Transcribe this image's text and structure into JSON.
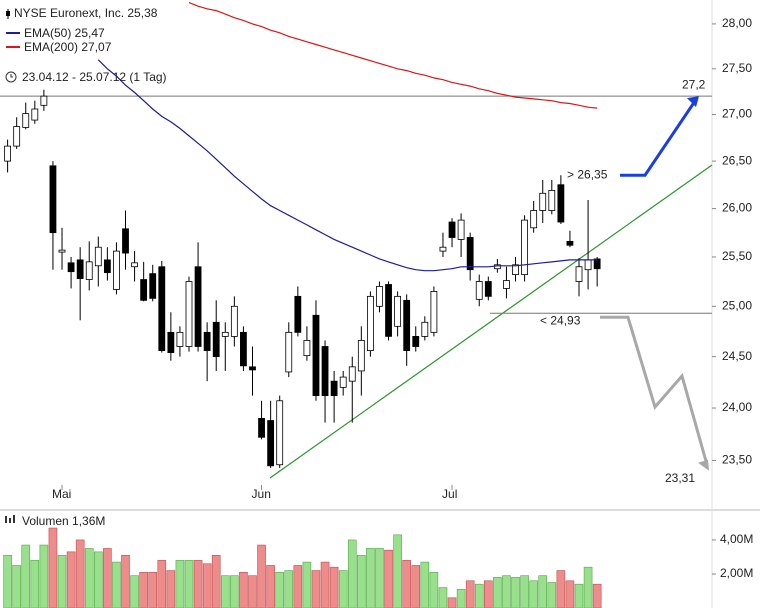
{
  "chart_data": {
    "type": "candlestick",
    "title": "NYSE Euronext, Inc. 25,38",
    "subtitle": "23.04.12 - 25.07.12 (1 Tag)",
    "categories": [
      null,
      null,
      null,
      null,
      null,
      null,
      "Mai",
      null,
      null,
      null,
      null,
      null,
      null,
      null,
      null,
      null,
      null,
      null,
      null,
      null,
      null,
      null,
      null,
      null,
      null,
      null,
      null,
      null,
      "Jun",
      null,
      null,
      null,
      null,
      null,
      null,
      null,
      null,
      null,
      null,
      null,
      null,
      null,
      null,
      null,
      null,
      null,
      null,
      null,
      null,
      "Jul",
      null,
      null,
      null,
      null,
      null,
      null,
      null,
      null,
      null,
      null,
      null,
      null,
      null,
      null,
      null,
      null
    ],
    "open": [
      26.5,
      26.66,
      26.86,
      26.94,
      27.1,
      26.45,
      25.55,
      25.44,
      25.47,
      25.27,
      25.41,
      25.47,
      25.17,
      25.79,
      25.4,
      25.27,
      25.33,
      25.4,
      24.74,
      24.6,
      24.6,
      25.4,
      24.74,
      24.84,
      24.7,
      24.7,
      24.74,
      24.4,
      23.9,
      23.88,
      23.46,
      24.35,
      25.1,
      24.51,
      24.91,
      24.6,
      24.26,
      24.2,
      24.26,
      24.36,
      24.56,
      25.0,
      25.22,
      24.8,
      25.06,
      24.7,
      24.7,
      24.74,
      25.56,
      25.86,
      25.68,
      25.7,
      25.07,
      25.25,
      25.38,
      25.18,
      25.32,
      25.32,
      25.8,
      25.98,
      25.98,
      26.25,
      25.66,
      25.25,
      25.37,
      25.48
    ],
    "high": [
      26.73,
      26.97,
      27.13,
      27.15,
      27.27,
      26.5,
      25.8,
      25.5,
      25.6,
      25.66,
      25.71,
      25.6,
      25.65,
      25.98,
      25.56,
      25.45,
      25.42,
      25.46,
      24.94,
      24.8,
      25.3,
      25.65,
      24.84,
      25.06,
      24.84,
      25.1,
      24.8,
      24.6,
      24.07,
      24.07,
      24.12,
      24.84,
      25.2,
      24.8,
      25.06,
      24.66,
      24.36,
      24.36,
      24.5,
      24.8,
      25.15,
      25.25,
      25.25,
      25.15,
      25.12,
      24.8,
      24.9,
      25.2,
      25.75,
      25.9,
      25.95,
      25.75,
      25.32,
      25.3,
      25.48,
      25.4,
      25.5,
      25.93,
      26.08,
      26.3,
      26.3,
      26.35,
      25.77,
      25.49,
      26.09,
      25.5
    ],
    "low": [
      26.38,
      26.63,
      26.84,
      26.9,
      27.04,
      25.37,
      25.37,
      25.18,
      24.86,
      25.16,
      25.2,
      25.26,
      25.12,
      25.37,
      25.25,
      25.05,
      25.05,
      24.54,
      24.46,
      24.5,
      24.55,
      24.55,
      24.26,
      24.36,
      24.36,
      24.6,
      24.36,
      24.12,
      23.7,
      23.43,
      23.43,
      24.3,
      24.7,
      24.46,
      24.07,
      23.86,
      23.86,
      24.12,
      23.86,
      24.12,
      24.5,
      24.94,
      24.66,
      24.7,
      24.41,
      24.55,
      24.66,
      24.7,
      25.5,
      25.6,
      25.5,
      25.26,
      25.0,
      25.06,
      25.34,
      25.08,
      25.25,
      25.25,
      25.75,
      25.85,
      25.94,
      25.84,
      25.6,
      25.1,
      25.17,
      25.2
    ],
    "close": [
      26.66,
      26.87,
      27.01,
      27.06,
      27.2,
      25.75,
      25.57,
      25.35,
      25.28,
      25.45,
      25.6,
      25.34,
      25.56,
      25.54,
      25.44,
      25.06,
      25.08,
      24.56,
      24.54,
      24.74,
      25.25,
      24.6,
      24.56,
      24.5,
      24.74,
      25.0,
      24.41,
      24.37,
      23.72,
      23.45,
      24.07,
      24.74,
      24.74,
      24.66,
      24.12,
      24.12,
      24.12,
      24.3,
      24.4,
      24.66,
      25.1,
      25.2,
      24.7,
      25.1,
      24.56,
      24.6,
      24.84,
      25.15,
      25.6,
      25.7,
      25.88,
      25.37,
      25.25,
      25.1,
      25.42,
      25.26,
      25.42,
      25.88,
      25.98,
      26.16,
      26.19,
      25.86,
      25.62,
      25.4,
      25.47,
      25.38
    ],
    "up_color": "#ffffff",
    "down_color": "#000000",
    "series": [
      {
        "name": "EMA(50) 25,47",
        "color": "#1c1c9c",
        "values": [
          null,
          null,
          null,
          null,
          null,
          null,
          null,
          null,
          null,
          null,
          27.6,
          27.5,
          27.42,
          27.32,
          27.24,
          27.15,
          27.06,
          26.98,
          26.92,
          26.85,
          26.77,
          26.69,
          26.61,
          26.52,
          26.43,
          26.34,
          26.26,
          26.18,
          26.1,
          26.03,
          25.98,
          25.93,
          25.88,
          25.83,
          25.78,
          25.73,
          25.68,
          25.64,
          25.6,
          25.56,
          25.52,
          25.48,
          25.45,
          25.42,
          25.39,
          25.37,
          25.36,
          25.36,
          25.37,
          25.38,
          25.4,
          25.4,
          25.4,
          25.4,
          25.41,
          25.41,
          25.41,
          25.42,
          25.43,
          25.44,
          25.45,
          25.46,
          25.47,
          25.47,
          25.47,
          25.47
        ]
      },
      {
        "name": "EMA(200) 27,07",
        "color": "#e01414",
        "values": [
          null,
          null,
          null,
          null,
          null,
          null,
          null,
          null,
          null,
          null,
          null,
          null,
          null,
          null,
          null,
          null,
          null,
          null,
          null,
          null,
          28.24,
          28.2,
          28.17,
          28.15,
          28.11,
          28.07,
          28.04,
          28.0,
          27.97,
          27.93,
          27.9,
          27.86,
          27.83,
          27.8,
          27.77,
          27.74,
          27.71,
          27.68,
          27.65,
          27.62,
          27.59,
          27.56,
          27.53,
          27.5,
          27.48,
          27.45,
          27.43,
          27.4,
          27.38,
          27.35,
          27.33,
          27.31,
          27.28,
          27.26,
          27.23,
          27.21,
          27.19,
          27.18,
          27.17,
          27.16,
          27.15,
          27.13,
          27.12,
          27.1,
          27.08,
          27.07
        ]
      }
    ],
    "log_scale": true,
    "ylim": [
      23.27,
      28.27
    ],
    "yticks": [
      {
        "value": 23.5,
        "label": "23,50"
      },
      {
        "value": 24,
        "label": "24,00"
      },
      {
        "value": 24.5,
        "label": "24,50"
      },
      {
        "value": 25,
        "label": "25,00"
      },
      {
        "value": 25.5,
        "label": "25,50"
      },
      {
        "value": 26,
        "label": "26,00"
      },
      {
        "value": 26.5,
        "label": "26,50"
      },
      {
        "value": 27,
        "label": "27,00"
      },
      {
        "value": 27.5,
        "label": "27,50"
      },
      {
        "value": 28,
        "label": "28,00"
      }
    ],
    "annotations": {
      "target_high": {
        "value": 27.2,
        "label": "27,2"
      },
      "breakout": {
        "value": 26.35,
        "label": "> 26,35"
      },
      "breakdown": {
        "value": 24.93,
        "label": "< 24,93"
      },
      "target_low": {
        "value": 23.31,
        "label": "23,31"
      }
    },
    "volume": {
      "title": "Volumen 1,36M",
      "up_color": "#98e08c",
      "down_color": "#ee8c8c",
      "values": [
        3.1,
        2.5,
        3.7,
        2.8,
        3.7,
        4.7,
        3.1,
        3.3,
        4.0,
        3.5,
        3.3,
        3.5,
        2.7,
        3.1,
        1.9,
        2.1,
        2.1,
        2.8,
        2.2,
        2.8,
        2.8,
        2.8,
        2.6,
        3.1,
        1.9,
        1.9,
        2.1,
        1.9,
        3.7,
        2.5,
        2.1,
        2.2,
        2.5,
        2.7,
        2.2,
        2.7,
        2.4,
        2.2,
        4.0,
        3.1,
        3.5,
        3.5,
        3.4,
        4.3,
        2.8,
        2.5,
        2.7,
        2.1,
        1.2,
        0.6,
        1.1,
        1.6,
        1.4,
        1.6,
        1.8,
        1.9,
        1.8,
        1.9,
        1.6,
        1.9,
        1.5,
        2.2,
        1.6,
        1.4,
        2.4,
        1.4
      ],
      "ylim": [
        0,
        5.29
      ],
      "yticks": [
        {
          "value": 2,
          "label": "2,00M"
        },
        {
          "value": 4,
          "label": "4,00M"
        }
      ]
    }
  }
}
